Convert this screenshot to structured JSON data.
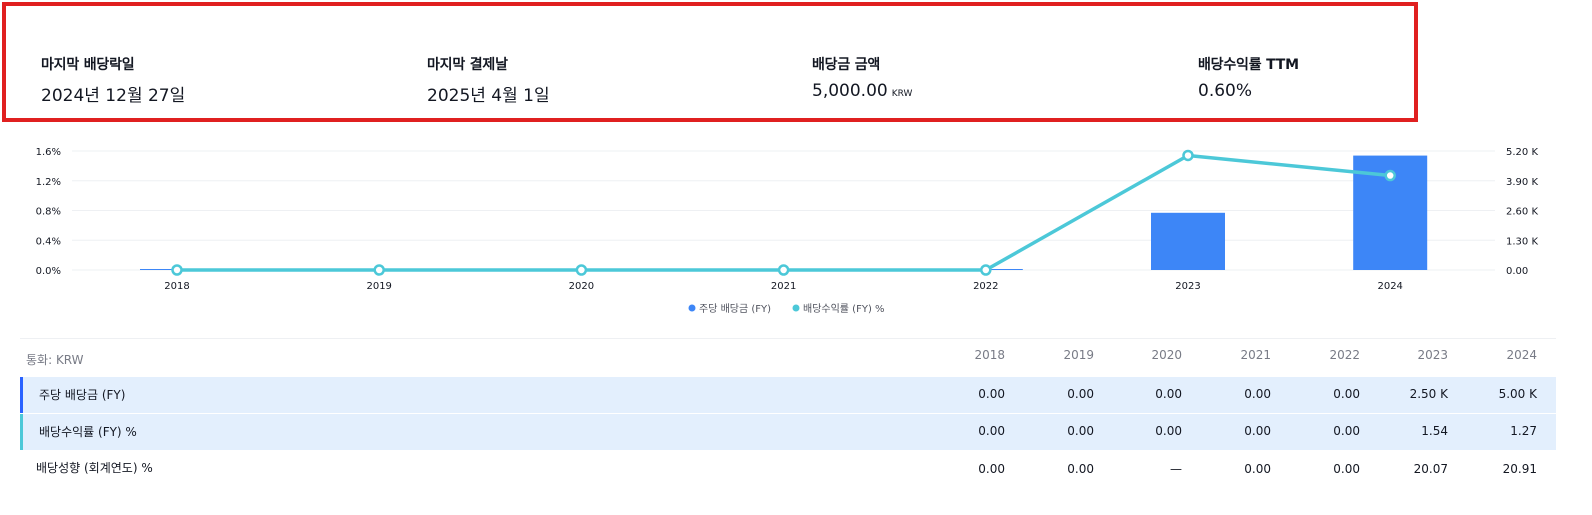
{
  "summary": {
    "ex_date": {
      "label": "마지막 배당락일",
      "value": "2024년 12월 27일"
    },
    "pay_date": {
      "label": "마지막 결제날",
      "value": "2025년 4월 1일"
    },
    "amount": {
      "label": "배당금 금액",
      "value": "5,000.00",
      "unit": "KRW"
    },
    "yield_ttm": {
      "label": "배당수익률 TTM",
      "value": "0.60%"
    }
  },
  "chart_data": {
    "type": "bar+line",
    "categories": [
      "2018",
      "2019",
      "2020",
      "2021",
      "2022",
      "2023",
      "2024"
    ],
    "series": [
      {
        "name": "주당 배당금 (FY)",
        "type": "bar",
        "axis": "right",
        "values": [
          0,
          0,
          0,
          0,
          0,
          2500,
          5000
        ],
        "color": "#3d86f7"
      },
      {
        "name": "배당수익률 (FY) %",
        "type": "line",
        "axis": "left",
        "values": [
          0,
          0,
          0,
          0,
          0,
          1.54,
          1.27
        ],
        "color": "#4cc8d8"
      }
    ],
    "left_axis": {
      "min": 0,
      "max": 1.6,
      "ticks": [
        "0.0%",
        "0.4%",
        "0.8%",
        "1.2%",
        "1.6%"
      ]
    },
    "right_axis": {
      "min": 0,
      "max": 5200,
      "ticks": [
        "0.00",
        "1.30 K",
        "2.60 K",
        "3.90 K",
        "5.20 K"
      ]
    },
    "legend_position": "bottom-center",
    "grid": true
  },
  "table": {
    "currency_label": "통화: KRW",
    "years": [
      "2018",
      "2019",
      "2020",
      "2021",
      "2022",
      "2023",
      "2024"
    ],
    "rows": [
      {
        "label": "주당 배당금 (FY)",
        "values": [
          "0.00",
          "0.00",
          "0.00",
          "0.00",
          "0.00",
          "2.50 K",
          "5.00 K"
        ]
      },
      {
        "label": "배당수익률 (FY) %",
        "values": [
          "0.00",
          "0.00",
          "0.00",
          "0.00",
          "0.00",
          "1.54",
          "1.27"
        ]
      },
      {
        "label": "배당성향 (회계연도) %",
        "values": [
          "0.00",
          "0.00",
          "—",
          "0.00",
          "0.00",
          "20.07",
          "20.91"
        ]
      }
    ]
  }
}
